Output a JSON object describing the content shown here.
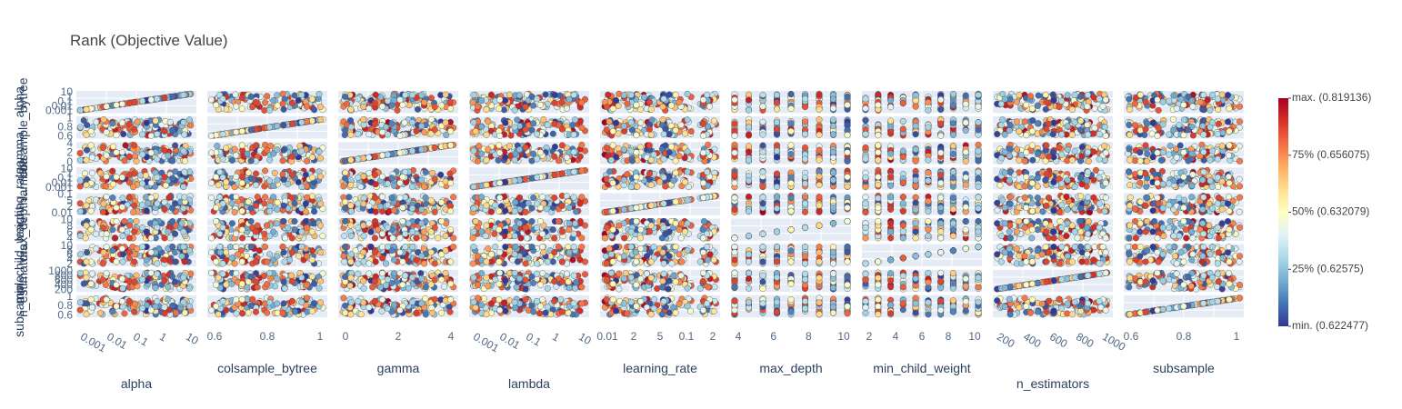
{
  "chart_data": {
    "type": "scatter",
    "title": "Rank (Objective Value)",
    "params": [
      "alpha",
      "colsample_bytree",
      "gamma",
      "lambda",
      "learning_rate",
      "max_depth",
      "min_child_weight",
      "n_estimators",
      "subsample"
    ],
    "row_labels": [
      "alpha",
      "colsample_bytree",
      "gamma",
      "lambda",
      "learning_rate",
      "max_depth",
      "min_child_weight",
      "n_estimators",
      "subsample"
    ],
    "x_ticks": [
      {
        "param": "alpha",
        "labels": [
          "0.001",
          "0.01",
          "0.1",
          "1",
          "10"
        ],
        "rotated": true
      },
      {
        "param": "colsample_bytree",
        "labels": [
          "0.6",
          "0.8",
          "1"
        ],
        "rotated": false
      },
      {
        "param": "gamma",
        "labels": [
          "0",
          "2",
          "4"
        ],
        "rotated": false
      },
      {
        "param": "lambda",
        "labels": [
          "0.001",
          "0.01",
          "0.1",
          "1",
          "10"
        ],
        "rotated": true
      },
      {
        "param": "learning_rate",
        "labels": [
          "0.01",
          "2",
          "5",
          "0.1",
          "2"
        ],
        "rotated": false
      },
      {
        "param": "max_depth",
        "labels": [
          "4",
          "6",
          "8",
          "10"
        ],
        "rotated": false
      },
      {
        "param": "min_child_weight",
        "labels": [
          "2",
          "4",
          "6",
          "8",
          "10"
        ],
        "rotated": false
      },
      {
        "param": "n_estimators",
        "labels": [
          "200",
          "400",
          "600",
          "800",
          "1000"
        ],
        "rotated": true
      },
      {
        "param": "subsample",
        "labels": [
          "0.6",
          "0.8",
          "1"
        ],
        "rotated": false
      }
    ],
    "y_ticks": [
      {
        "param": "alpha",
        "labels": [
          "10",
          "1",
          "0.1",
          "0.01",
          "0.001"
        ]
      },
      {
        "param": "colsample_bytree",
        "labels": [
          "1",
          "0.8",
          "0.6"
        ]
      },
      {
        "param": "gamma",
        "labels": [
          "4",
          "2",
          "0"
        ]
      },
      {
        "param": "lambda",
        "labels": [
          "10",
          "1",
          "0.1",
          "0.01",
          "0.001"
        ]
      },
      {
        "param": "learning_rate",
        "labels": [
          "0.1",
          "5",
          "2",
          "0.01"
        ]
      },
      {
        "param": "max_depth",
        "labels": [
          "10",
          "8",
          "6",
          "4"
        ]
      },
      {
        "param": "min_child_weight",
        "labels": [
          "10",
          "8",
          "6",
          "4",
          "2"
        ]
      },
      {
        "param": "n_estimators",
        "labels": [
          "1000",
          "800",
          "600",
          "400",
          "200"
        ]
      },
      {
        "param": "subsample",
        "labels": [
          "1",
          "0.8",
          "0.6"
        ]
      }
    ],
    "discrete_params": [
      "max_depth",
      "min_child_weight"
    ],
    "discrete_levels": {
      "max_depth": 9,
      "min_child_weight": 10
    },
    "colorbar": {
      "labels": [
        "max. (0.819136)",
        "75% (0.656075)",
        "50% (0.632079)",
        "25% (0.62575)",
        "min. (0.622477)"
      ],
      "colorscale": [
        "#313695",
        "#4575b4",
        "#74add1",
        "#abd9e9",
        "#e0f3f8",
        "#ffffbf",
        "#fee090",
        "#fdae61",
        "#f46d43",
        "#d73027",
        "#a50026"
      ]
    },
    "n_trials": 120
  }
}
